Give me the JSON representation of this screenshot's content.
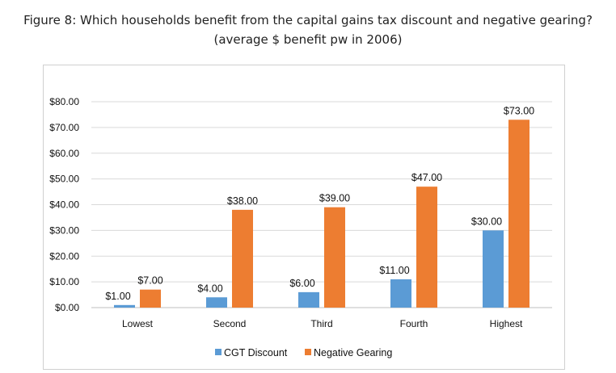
{
  "figure": {
    "title": "Figure 8: Which households benefit from the capital gains tax discount and negative gearing?",
    "subtitle": "(average $ benefit pw in 2006)"
  },
  "chart_data": {
    "type": "bar",
    "title": "Figure 8: Which households benefit from the capital gains tax discount and negative gearing?",
    "subtitle": "(average $ benefit pw in 2006)",
    "categories": [
      "Lowest",
      "Second",
      "Third",
      "Fourth",
      "Highest"
    ],
    "series": [
      {
        "name": "CGT Discount",
        "color": "#5b9bd5",
        "values": [
          1,
          4,
          6,
          11,
          30
        ],
        "labels": [
          "$1.00",
          "$4.00",
          "$6.00",
          "$11.00",
          "$30.00"
        ]
      },
      {
        "name": "Negative Gearing",
        "color": "#ed7d31",
        "values": [
          7,
          38,
          39,
          47,
          73
        ],
        "labels": [
          "$7.00",
          "$38.00",
          "$39.00",
          "$47.00",
          "$73.00"
        ]
      }
    ],
    "ylim": [
      0,
      80
    ],
    "yticks": [
      0,
      10,
      20,
      30,
      40,
      50,
      60,
      70,
      80
    ],
    "ytick_labels": [
      "$0.00",
      "$10.00",
      "$20.00",
      "$30.00",
      "$40.00",
      "$50.00",
      "$60.00",
      "$70.00",
      "$80.00"
    ],
    "grid": true,
    "legend": "bottom"
  }
}
